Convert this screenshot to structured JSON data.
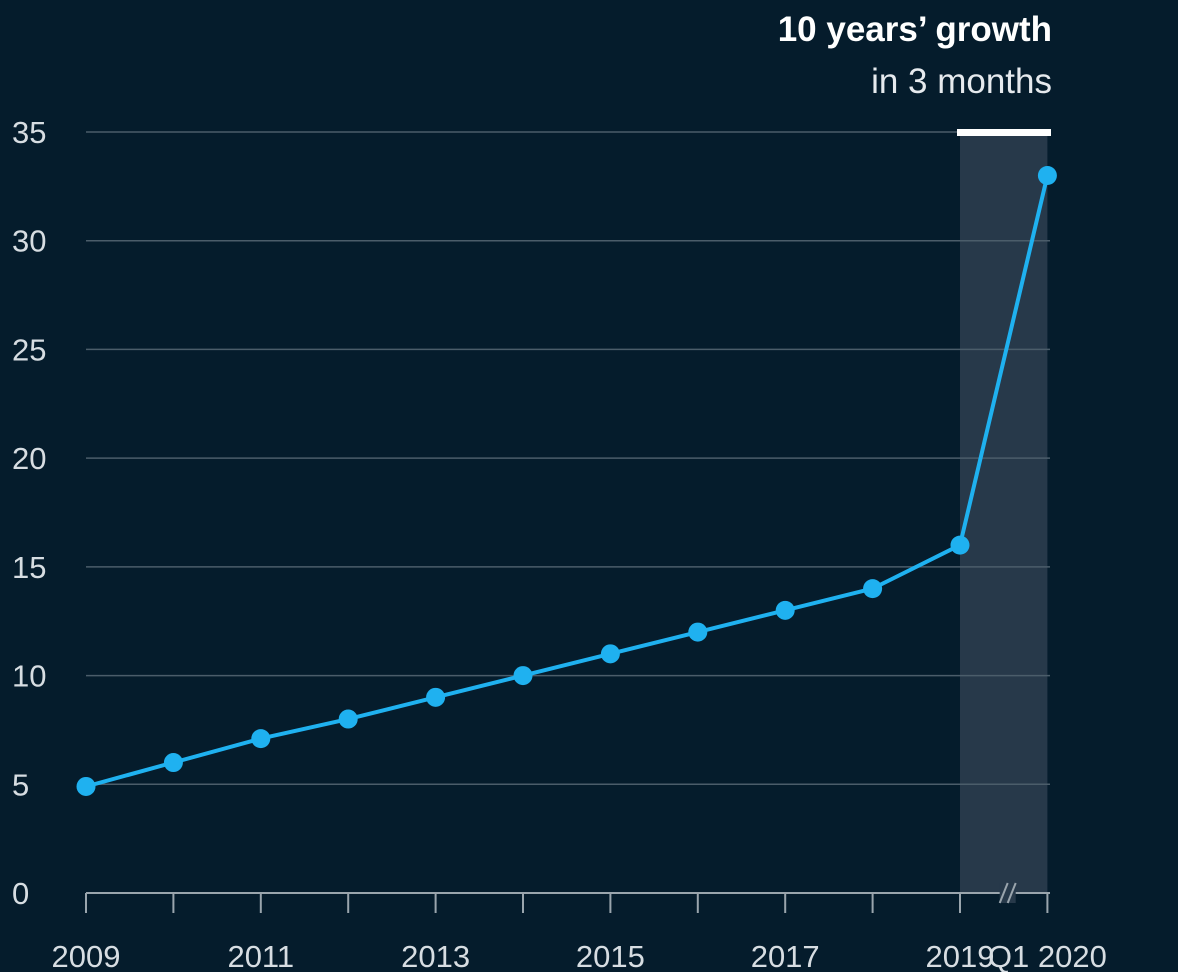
{
  "colors": {
    "background": "#051c2c",
    "line": "#1fb1f0",
    "gridline": "#4b5d6a",
    "axis": "#9aa5ad",
    "highlight_band": "#27394a",
    "annotation_bar": "#ffffff"
  },
  "annotation": {
    "title": "10 years’ growth",
    "subtitle": "in 3 months"
  },
  "chart_data": {
    "type": "line",
    "title": "",
    "xlabel": "",
    "ylabel": "",
    "ylim": [
      0,
      35
    ],
    "yticks": [
      0,
      5,
      10,
      15,
      20,
      25,
      30,
      35
    ],
    "grid": true,
    "legend": "none",
    "x": [
      "2009",
      "2010",
      "2011",
      "2012",
      "2013",
      "2014",
      "2015",
      "2016",
      "2017",
      "2018",
      "2019",
      "Q1 2020"
    ],
    "x_tick_labels": [
      "2009",
      "",
      "2011",
      "",
      "2013",
      "",
      "2015",
      "",
      "2017",
      "",
      "2019",
      "Q1 2020"
    ],
    "series": [
      {
        "values": [
          4.9,
          6.0,
          7.1,
          8.0,
          9.0,
          10.0,
          11.0,
          12.0,
          13.0,
          14.0,
          16.0,
          33.0
        ]
      }
    ],
    "highlight_range": [
      "2019",
      "Q1 2020"
    ],
    "axis_break_between": [
      "2019",
      "Q1 2020"
    ]
  }
}
